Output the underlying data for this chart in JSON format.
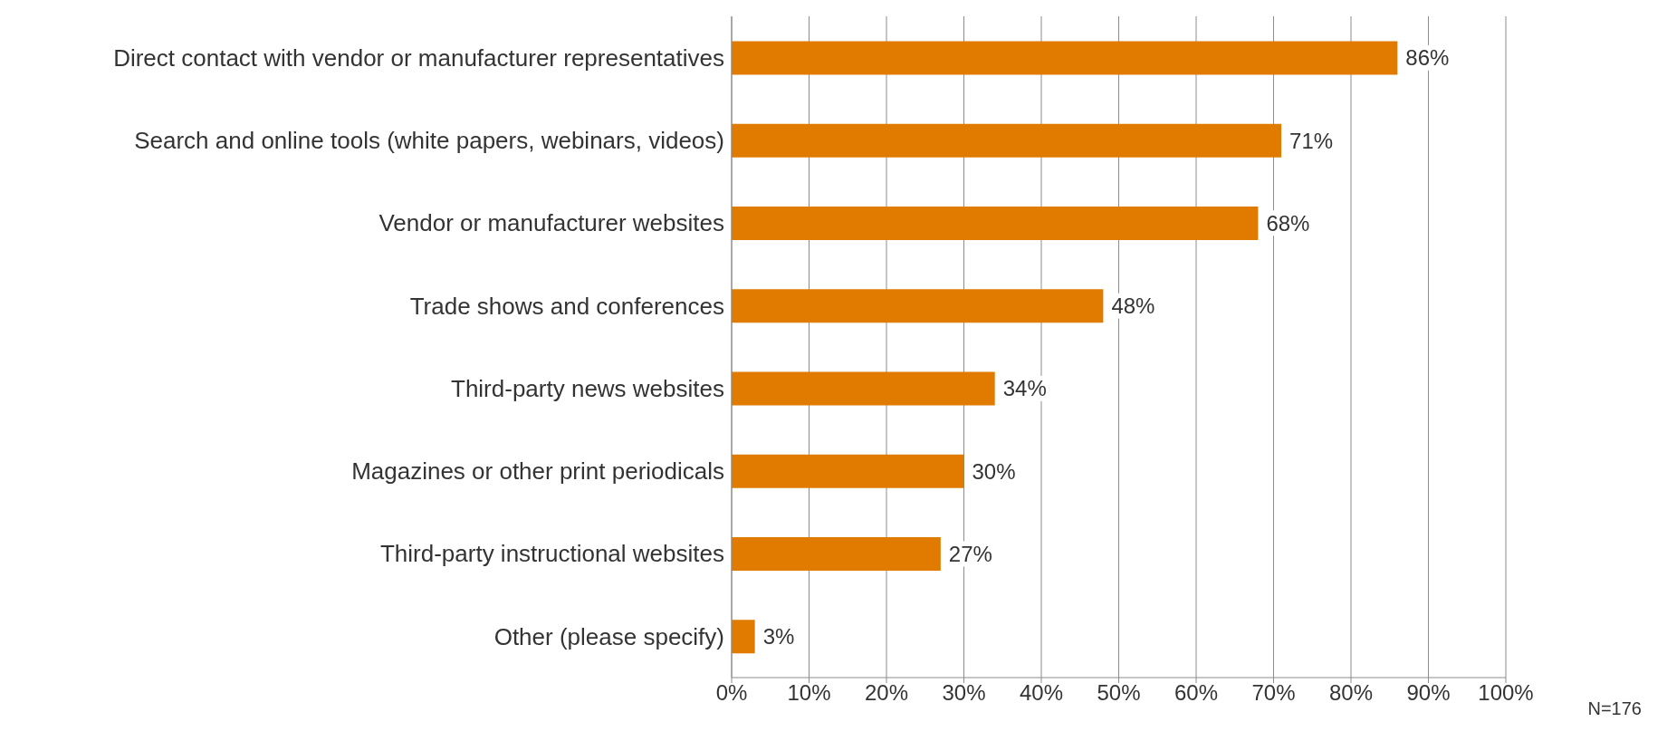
{
  "chart_data": {
    "type": "bar",
    "orientation": "horizontal",
    "categories": [
      "Direct contact with vendor or manufacturer representatives",
      "Search and online tools (white papers, webinars, videos)",
      "Vendor or manufacturer websites",
      "Trade shows and conferences",
      "Third-party news websites",
      "Magazines or other print periodicals",
      "Third-party instructional websites",
      "Other (please specify)"
    ],
    "values": [
      86,
      71,
      68,
      48,
      34,
      30,
      27,
      3
    ],
    "value_labels": [
      "86%",
      "71%",
      "68%",
      "48%",
      "34%",
      "30%",
      "27%",
      "3%"
    ],
    "color": "#e07b00",
    "xlim": [
      0,
      100
    ],
    "xticks": [
      {
        "value": 0,
        "label": "0%"
      },
      {
        "value": 10,
        "label": "10%"
      },
      {
        "value": 20,
        "label": "20%"
      },
      {
        "value": 30,
        "label": "30%"
      },
      {
        "value": 40,
        "label": "40%"
      },
      {
        "value": 50,
        "label": "50%"
      },
      {
        "value": 60,
        "label": "60%"
      },
      {
        "value": 70,
        "label": "70%"
      },
      {
        "value": 80,
        "label": "80%"
      },
      {
        "value": 90,
        "label": "90%"
      },
      {
        "value": 100,
        "label": "100%"
      }
    ],
    "grid": "x",
    "annotations": [
      "N=176"
    ]
  }
}
